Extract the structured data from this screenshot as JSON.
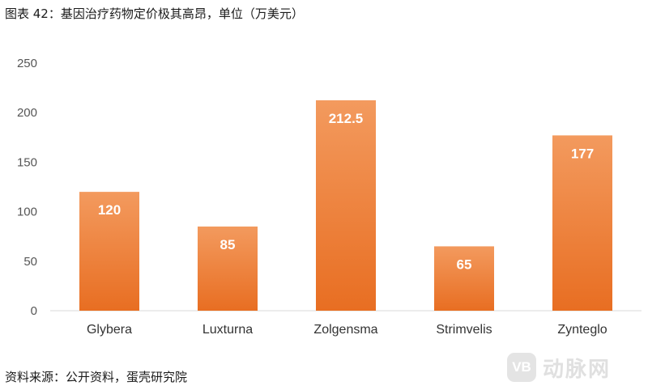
{
  "header": {
    "title": "图表 42：基因治疗药物定价极其高昂，单位（万美元）"
  },
  "footer": {
    "source": "资料来源：公开资料，蛋壳研究院"
  },
  "watermark": {
    "logo_text": "VB",
    "text": "动脉网"
  },
  "chart_data": {
    "type": "bar",
    "categories": [
      "Glybera",
      "Luxturna",
      "Zolgensma",
      "Strimvelis",
      "Zynteglo"
    ],
    "values": [
      120,
      85,
      212.5,
      65,
      177
    ],
    "data_labels": [
      "120",
      "85",
      "212.5",
      "65",
      "177"
    ],
    "yticks": [
      "0",
      "50",
      "100",
      "150",
      "200",
      "250"
    ],
    "ylim": [
      0,
      250
    ],
    "xlabel": "",
    "ylabel": "",
    "grid": false,
    "legend": "none",
    "bar_color_top": "#f39a5e",
    "bar_color_bottom": "#e86e22",
    "axis_color": "#d9d9d9"
  }
}
